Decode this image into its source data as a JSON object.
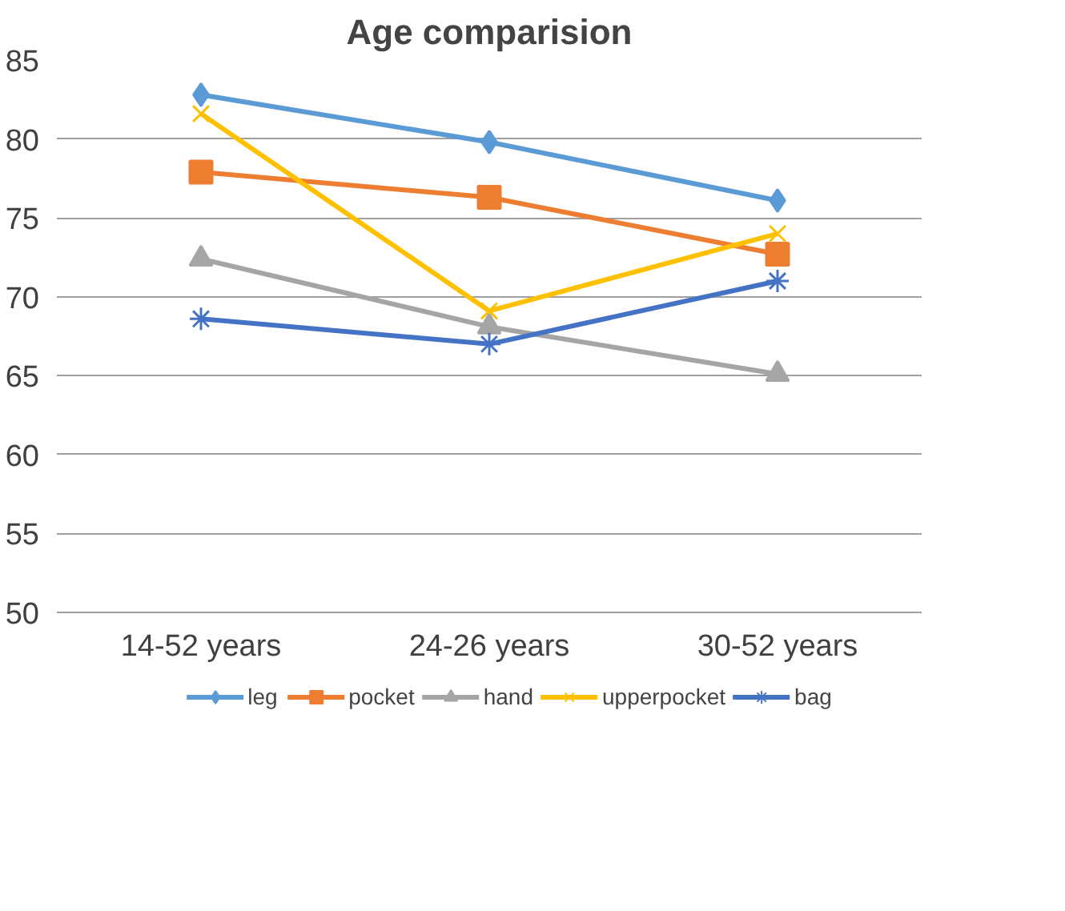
{
  "chart_data": {
    "type": "line",
    "title": "Age comparision",
    "categories": [
      "14-52 years",
      "24-26 years",
      "30-52 years"
    ],
    "series": [
      {
        "name": "leg",
        "color": "#5b9bd5",
        "marker": "diamond",
        "values": [
          82.8,
          79.8,
          76.1
        ]
      },
      {
        "name": "pocket",
        "color": "#ed7d31",
        "marker": "square",
        "values": [
          77.9,
          76.3,
          72.7
        ]
      },
      {
        "name": "hand",
        "color": "#a5a5a5",
        "marker": "triangle",
        "values": [
          72.4,
          68.1,
          65.1
        ]
      },
      {
        "name": "upperpocket",
        "color": "#ffc000",
        "marker": "x",
        "values": [
          81.6,
          69.1,
          74.0
        ]
      },
      {
        "name": "bag",
        "color": "#4472c4",
        "marker": "cross",
        "values": [
          68.6,
          67.0,
          71.0
        ]
      }
    ],
    "ylim": [
      50,
      85
    ],
    "yticks": [
      50,
      55,
      60,
      65,
      70,
      75,
      80,
      85
    ],
    "grid": "y",
    "legend": "bottom",
    "line_style": "solid"
  }
}
